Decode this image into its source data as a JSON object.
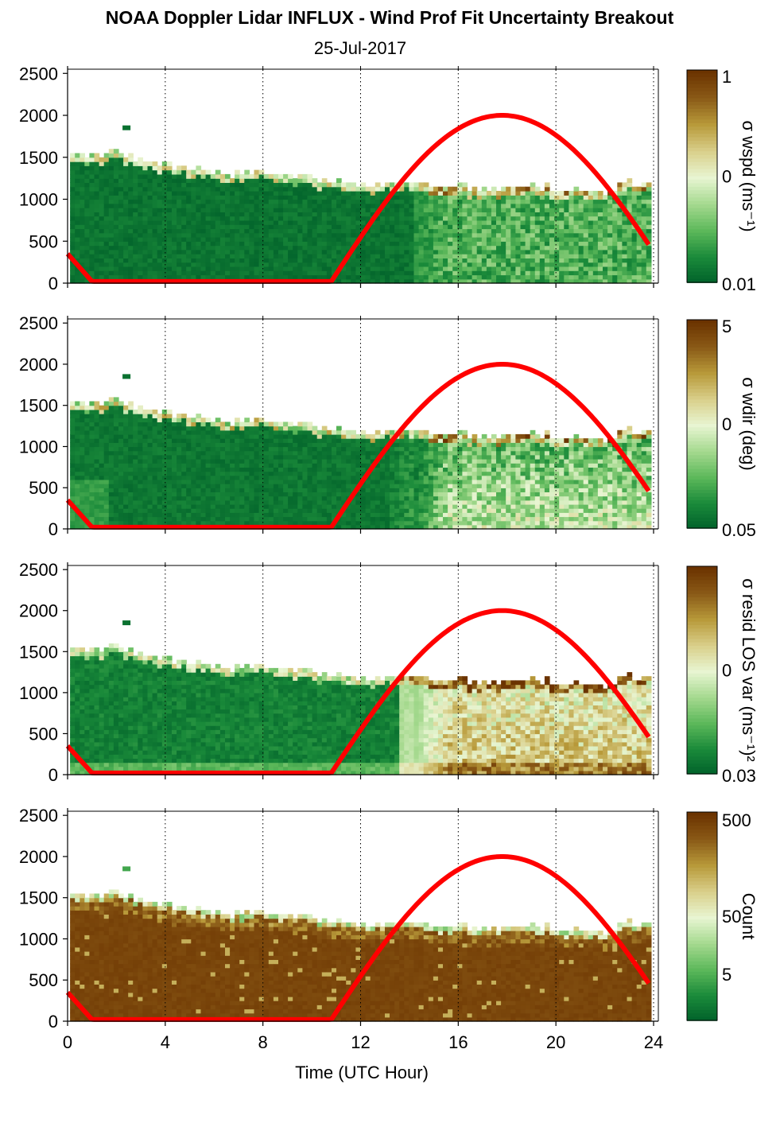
{
  "chart_data": {
    "type": "heatmap",
    "title": "NOAA Doppler Lidar INFLUX - Wind Prof Fit Uncertainty Breakout",
    "subtitle": "25-Jul-2017",
    "xlabel": "Time (UTC Hour)",
    "xlim": [
      0,
      24
    ],
    "x_ticks": [
      "0",
      "4",
      "8",
      "12",
      "16",
      "20",
      "24"
    ],
    "ylim": [
      0,
      2550
    ],
    "y_ticks": [
      "0",
      "500",
      "1000",
      "1500",
      "2000",
      "2500"
    ],
    "grid": "vertical dotted lines at 4 h intervals",
    "colormap": [
      "#00602a",
      "#1a8a3a",
      "#5cb85a",
      "#a5d98e",
      "#e8f5d2",
      "#d9cf8a",
      "#b89a3a",
      "#8a5a17",
      "#6b3300"
    ],
    "sun_curve": {
      "color": "#ff0000",
      "rise_hour": 10.8,
      "peak_hour": 17.8,
      "peak_height": 2000,
      "start_value": 350,
      "end_value": 500,
      "night_end_hour": 1.0
    },
    "boundary_layer_top": {
      "hours": [
        0,
        1,
        2,
        3,
        4,
        5,
        6,
        7,
        8,
        9,
        10,
        11,
        12,
        13,
        14,
        15,
        16,
        17,
        18,
        19,
        20,
        21,
        22,
        23,
        23.8
      ],
      "heights": [
        1520,
        1500,
        1550,
        1450,
        1400,
        1360,
        1300,
        1280,
        1330,
        1270,
        1220,
        1190,
        1180,
        1170,
        1180,
        1150,
        1120,
        1110,
        1130,
        1140,
        1100,
        1080,
        1060,
        1180,
        1160
      ]
    },
    "panels": [
      {
        "colorbar_label": "σ wspd (ms⁻¹)",
        "cb_ticks": [
          "1",
          "0",
          "0.01"
        ],
        "regime": "wspd"
      },
      {
        "colorbar_label": "σ wdir (deg)",
        "cb_ticks": [
          "5",
          "0",
          "0.05"
        ],
        "regime": "wdir"
      },
      {
        "colorbar_label": "σ resid LOS var (ms⁻¹)²",
        "cb_ticks": [
          "0",
          "0.03"
        ],
        "regime": "resid"
      },
      {
        "colorbar_label": "Count",
        "cb_ticks": [
          "500",
          "50",
          "5"
        ],
        "regime": "count"
      }
    ]
  }
}
